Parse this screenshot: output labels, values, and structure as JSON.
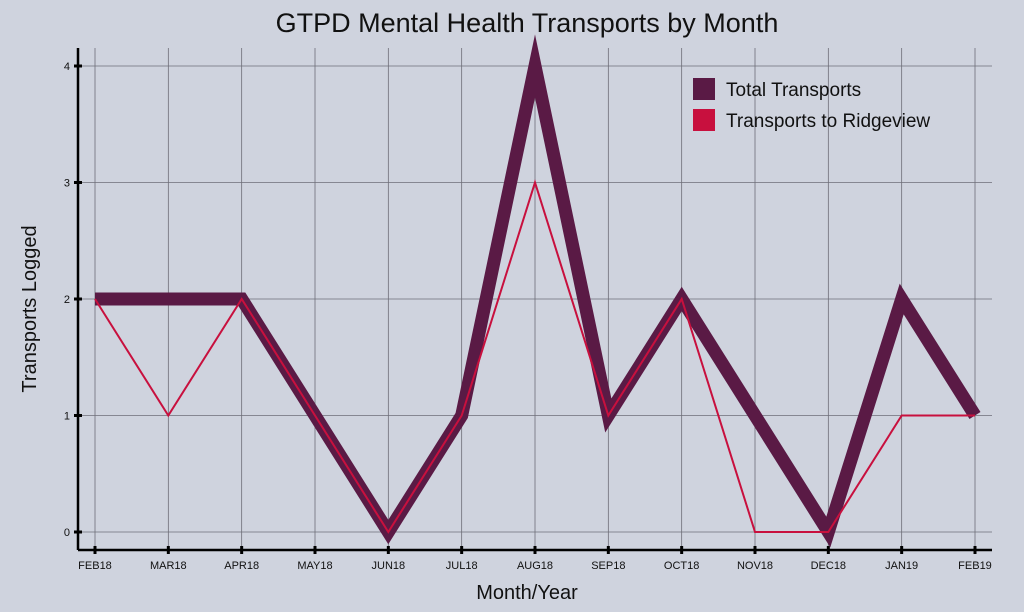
{
  "chart_data": {
    "type": "line",
    "title": "GTPD Mental Health Transports by Month",
    "xlabel": "Month/Year",
    "ylabel": "Transports Logged",
    "categories": [
      "FEB18",
      "MAR18",
      "APR18",
      "MAY18",
      "JUN18",
      "JUL18",
      "AUG18",
      "SEP18",
      "OCT18",
      "NOV18",
      "DEC18",
      "JAN19",
      "FEB19"
    ],
    "ylim": [
      0,
      4
    ],
    "yticks": [
      "0",
      "1",
      "2",
      "3",
      "4"
    ],
    "grid": true,
    "legend_position": "top-right",
    "series": [
      {
        "name": "Total Transports",
        "color": "#5a1a45",
        "values": [
          2,
          2,
          2,
          1,
          0,
          1,
          4,
          1,
          2,
          1,
          0,
          2,
          1
        ]
      },
      {
        "name": "Transports to Ridgeview",
        "color": "#c8103e",
        "values": [
          2,
          1,
          2,
          1,
          0,
          1,
          3,
          1,
          2,
          0,
          0,
          1,
          1
        ]
      }
    ]
  }
}
